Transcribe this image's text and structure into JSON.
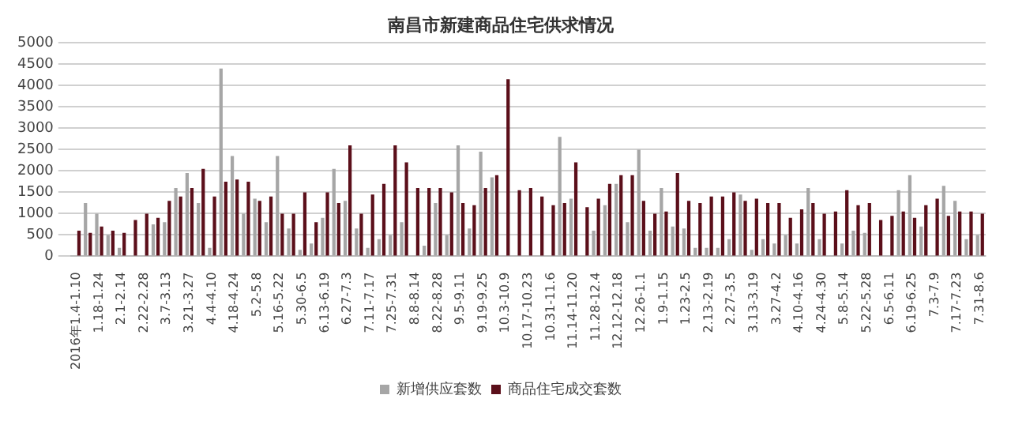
{
  "chart_data": {
    "type": "bar",
    "title": "南昌市新建商品住宅供求情况",
    "categories": [
      "2016年1.4-1.10",
      null,
      "1.18-1.24",
      null,
      "2.1-2.14",
      null,
      "2.22-2.28",
      null,
      "3.7-3.13",
      null,
      "3.21-3.27",
      null,
      "4.4-4.10",
      null,
      "4.18-4.24",
      null,
      "5.2-5.8",
      null,
      "5.16-5.22",
      null,
      "5.30-6.5",
      null,
      "6.13-6.19",
      null,
      "6.27-7.3",
      null,
      "7.11-7.17",
      null,
      "7.25-7.31",
      null,
      "8.8-8.14",
      null,
      "8.22-8.28",
      null,
      "9.5-9.11",
      null,
      "9.19-9.25",
      null,
      "10.3-10.9",
      null,
      "10.17-10.23",
      null,
      "10.31-11.6",
      null,
      "11.14-11.20",
      null,
      "11.28-12.4",
      null,
      "12.12-12.18",
      null,
      "12.26-1.1",
      null,
      "1.9-1.15",
      null,
      "1.23-2.5",
      null,
      "2.13-2.19",
      null,
      "2.27-3.5",
      null,
      "3.13-3.19",
      null,
      "3.27-4.2",
      null,
      "4.10-4.16",
      null,
      "4.24-4.30",
      null,
      "5.8-5.14",
      null,
      "5.22-5.28",
      null,
      "6.5-6.11",
      null,
      "6.19-6.25",
      null,
      "7.3-7.9",
      null,
      "7.17-7.23",
      null,
      "7.31-8.6"
    ],
    "series": [
      {
        "name": "新增供应套数",
        "color": "#a6a6a6",
        "values": [
          0,
          1250,
          1000,
          500,
          200,
          0,
          0,
          750,
          800,
          1600,
          1950,
          1250,
          200,
          4400,
          2350,
          1000,
          1350,
          800,
          2350,
          650,
          150,
          300,
          900,
          2050,
          1300,
          650,
          200,
          400,
          500,
          800,
          0,
          250,
          1250,
          500,
          2600,
          650,
          2450,
          1850,
          0,
          0,
          0,
          0,
          0,
          2800,
          1350,
          0,
          600,
          1200,
          1700,
          800,
          2500,
          600,
          1600,
          700,
          650,
          200,
          200,
          200,
          400,
          1450,
          150,
          400,
          300,
          500,
          300,
          1600,
          400,
          0,
          300,
          600,
          550,
          0,
          0,
          1550,
          1900,
          700,
          0,
          1650,
          1300,
          400,
          500
        ]
      },
      {
        "name": "商品住宅成交套数",
        "color": "#5b0f1a",
        "values": [
          600,
          550,
          700,
          600,
          550,
          850,
          1000,
          900,
          1300,
          1400,
          1600,
          2050,
          1400,
          1750,
          1800,
          1750,
          1300,
          1400,
          1000,
          1000,
          1500,
          800,
          1500,
          1250,
          2600,
          1000,
          1450,
          1700,
          2600,
          2200,
          1600,
          1600,
          1600,
          1500,
          1250,
          1200,
          1600,
          1900,
          4150,
          1550,
          1600,
          1400,
          1200,
          1250,
          2200,
          1150,
          1350,
          1700,
          1900,
          1900,
          1300,
          1000,
          1050,
          1950,
          1300,
          1250,
          1400,
          1400,
          1500,
          1300,
          1350,
          1250,
          1250,
          900,
          1100,
          1250,
          1000,
          1050,
          1550,
          1200,
          1250,
          850,
          950,
          1050,
          900,
          1200,
          1350,
          950,
          1050,
          1050,
          1000
        ]
      }
    ],
    "ylim": [
      0,
      5000
    ],
    "yticks": [
      0,
      500,
      1000,
      1500,
      2000,
      2500,
      3000,
      3500,
      4000,
      4500,
      5000
    ],
    "grid": "y",
    "legend": "bottom"
  }
}
